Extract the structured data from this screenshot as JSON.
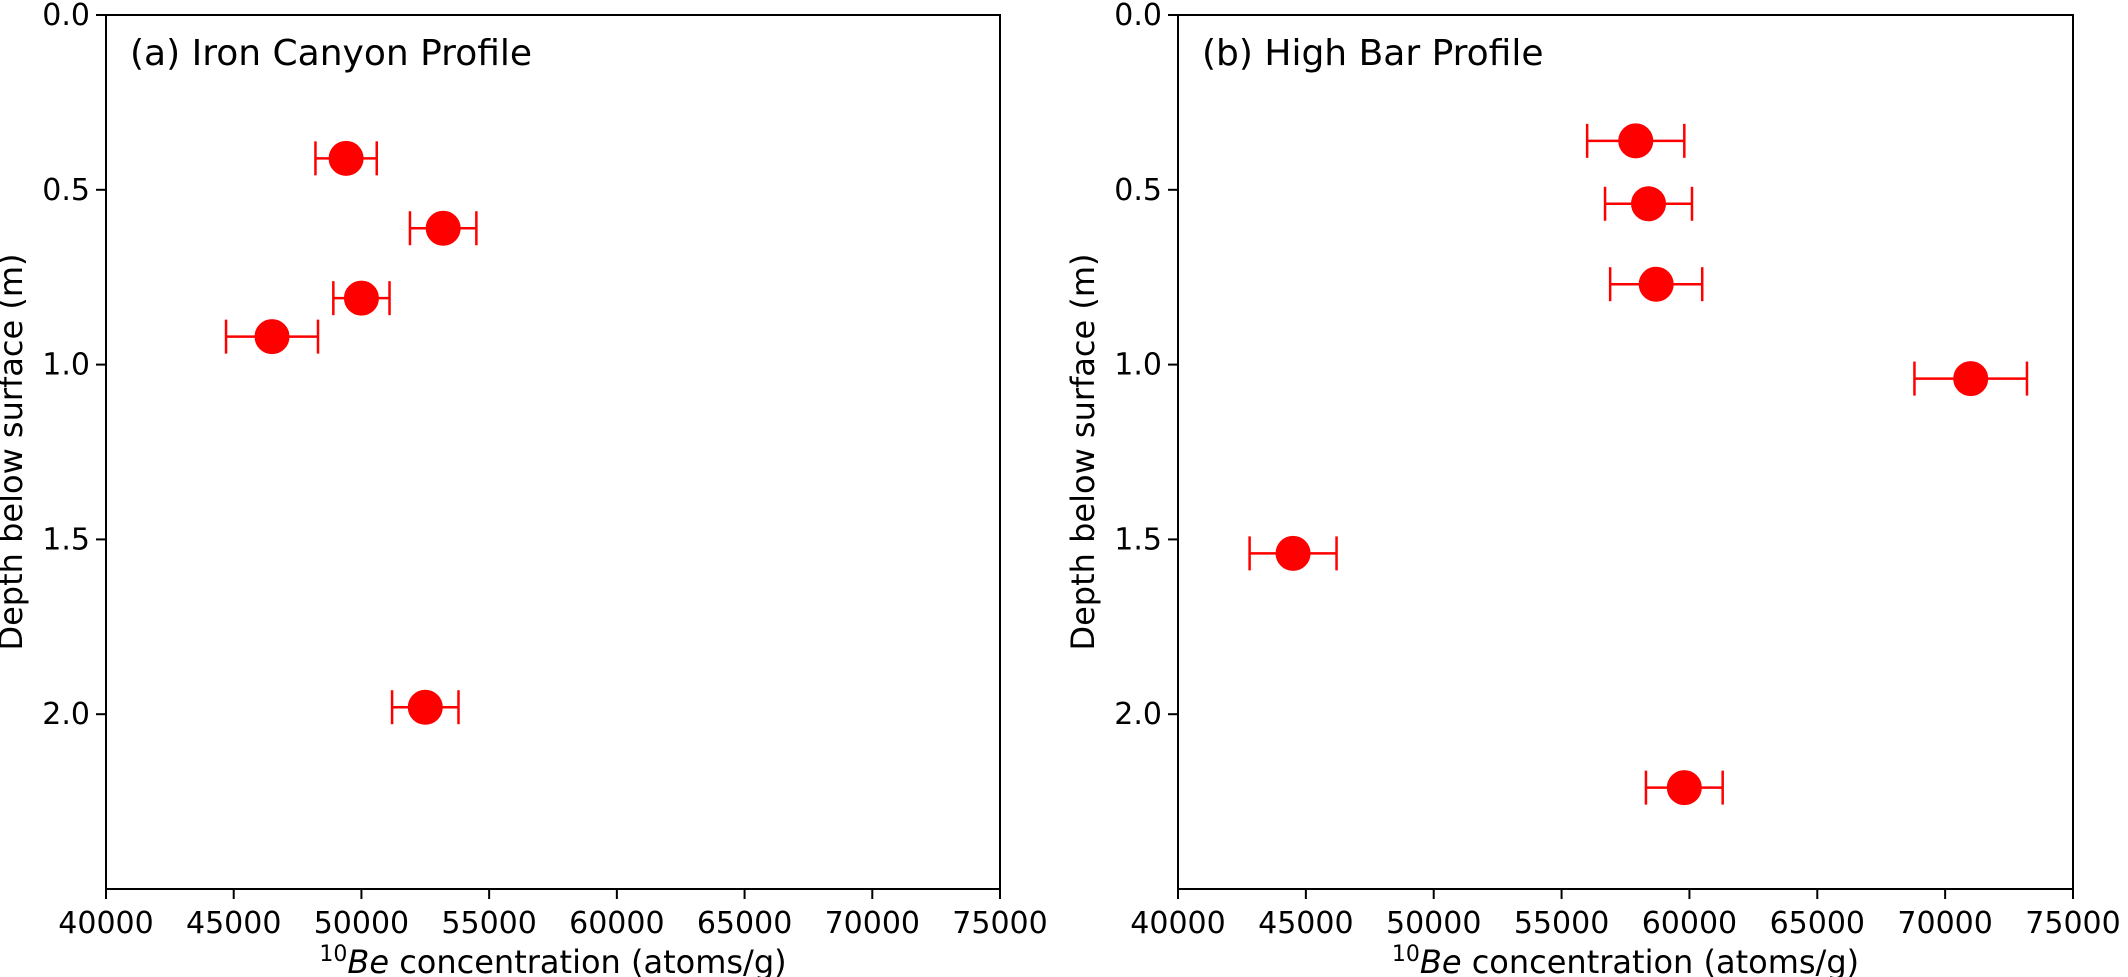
{
  "chart_data": [
    {
      "type": "scatter",
      "title": "(a) Iron Canyon Profile",
      "xlabel_sup": "10",
      "xlabel_italic": "Be",
      "xlabel_rest": " concentration (atoms/g)",
      "ylabel": "Depth below surface (m)",
      "xlim": [
        40000,
        75000
      ],
      "ylim": [
        2.5,
        0.0
      ],
      "y_inverted": true,
      "xticks": [
        "40000",
        "45000",
        "50000",
        "55000",
        "60000",
        "65000",
        "70000",
        "75000"
      ],
      "yticks": [
        "0.0",
        "0.5",
        "1.0",
        "1.5",
        "2.0"
      ],
      "grid": false,
      "color": "#ff0000",
      "points": [
        {
          "x": 49400,
          "y": 0.41,
          "xerr": 1200
        },
        {
          "x": 53200,
          "y": 0.61,
          "xerr": 1300
        },
        {
          "x": 50000,
          "y": 0.81,
          "xerr": 1100
        },
        {
          "x": 46500,
          "y": 0.92,
          "xerr": 1800
        },
        {
          "x": 52500,
          "y": 1.98,
          "xerr": 1300
        }
      ]
    },
    {
      "type": "scatter",
      "title": "(b) High Bar Profile",
      "xlabel_sup": "10",
      "xlabel_italic": "Be",
      "xlabel_rest": " concentration (atoms/g)",
      "ylabel": "Depth below surface (m)",
      "xlim": [
        40000,
        75000
      ],
      "ylim": [
        2.5,
        0.0
      ],
      "y_inverted": true,
      "xticks": [
        "40000",
        "45000",
        "50000",
        "55000",
        "60000",
        "65000",
        "70000",
        "75000"
      ],
      "yticks": [
        "0.0",
        "0.5",
        "1.0",
        "1.5",
        "2.0"
      ],
      "grid": false,
      "color": "#ff0000",
      "points": [
        {
          "x": 57900,
          "y": 0.36,
          "xerr": 1900
        },
        {
          "x": 58400,
          "y": 0.54,
          "xerr": 1700
        },
        {
          "x": 58700,
          "y": 0.77,
          "xerr": 1800
        },
        {
          "x": 71000,
          "y": 1.04,
          "xerr": 2200
        },
        {
          "x": 44500,
          "y": 1.54,
          "xerr": 1700
        },
        {
          "x": 59800,
          "y": 2.21,
          "xerr": 1500
        }
      ]
    }
  ]
}
